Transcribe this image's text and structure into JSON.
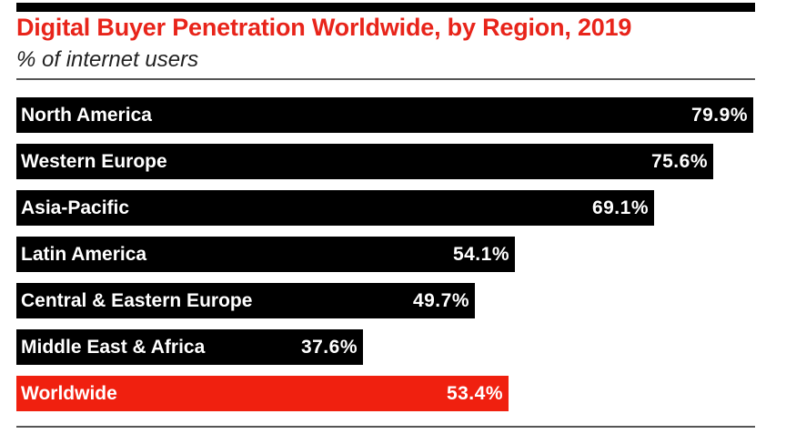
{
  "chart_data": {
    "type": "bar",
    "orientation": "horizontal",
    "title": "Digital Buyer Penetration Worldwide, by Region, 2019",
    "subtitle": "% of internet users",
    "categories": [
      "North America",
      "Western Europe",
      "Asia-Pacific",
      "Latin America",
      "Central & Eastern Europe",
      "Middle East & Africa",
      "Worldwide"
    ],
    "values": [
      79.9,
      75.6,
      69.1,
      54.1,
      49.7,
      37.6,
      53.4
    ],
    "value_labels": [
      "79.9%",
      "75.6%",
      "69.1%",
      "54.1%",
      "49.7%",
      "37.6%",
      "53.4%"
    ],
    "xlim": [
      0,
      79.9
    ],
    "bar_colors": [
      "#000000",
      "#000000",
      "#000000",
      "#000000",
      "#000000",
      "#000000",
      "#f0200f"
    ],
    "grid": false
  }
}
